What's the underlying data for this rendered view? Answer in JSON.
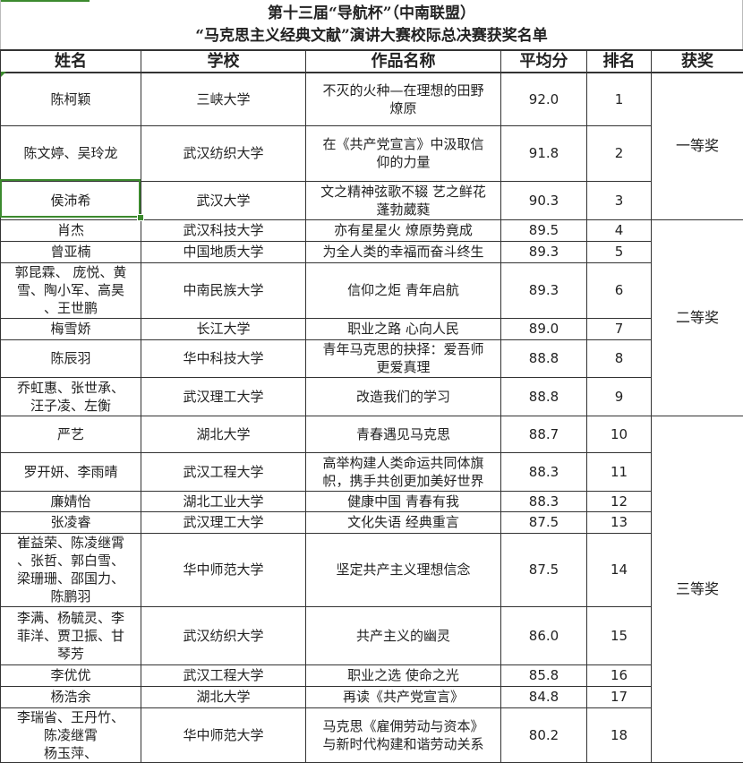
{
  "title": {
    "line1": "第十三届“导航杯”（中南联盟）",
    "line2": "“马克思主义经典文献”演讲大赛校际总决赛获奖名单"
  },
  "headers": [
    "姓名",
    "学校",
    "作品名称",
    "平均分",
    "排名",
    "获奖"
  ],
  "awards": [
    {
      "label": "一等奖",
      "rows": 3
    },
    {
      "label": "二等奖",
      "rows": 6
    },
    {
      "label": "三等奖",
      "rows": 9
    }
  ],
  "rows": [
    {
      "name": "陈柯颖",
      "school": "三峡大学",
      "work": "不灭的火种—在理想的田野\n燎原",
      "score": "92.0",
      "rank": "1"
    },
    {
      "name": "陈文婷、吴玲龙",
      "school": "武汉纺织大学",
      "work": "在《共产党宣言》中汲取信\n仰的力量",
      "score": "91.8",
      "rank": "2"
    },
    {
      "name": "侯沛希",
      "school": "武汉大学",
      "work": "文之精神弦歌不辍 艺之鲜花\n蓬勃葳蕤",
      "score": "90.3",
      "rank": "3"
    },
    {
      "name": "肖杰",
      "school": "武汉科技大学",
      "work": "亦有星星火 燎原势竟成",
      "score": "89.5",
      "rank": "4"
    },
    {
      "name": "曾亚楠",
      "school": "中国地质大学",
      "work": "为全人类的幸福而奋斗终生",
      "score": "89.3",
      "rank": "5"
    },
    {
      "name": "郭昆霖、 庞悦、黄\n雪、陶小军、高昊\n、王世鹏",
      "school": "中南民族大学",
      "work": "信仰之炬 青年启航",
      "score": "89.3",
      "rank": "6"
    },
    {
      "name": "梅雪娇",
      "school": "长江大学",
      "work": "职业之路 心向人民",
      "score": "89.0",
      "rank": "7"
    },
    {
      "name": "陈辰羽",
      "school": "华中科技大学",
      "work": "青年马克思的抉择：爱吾师\n更爱真理",
      "score": "88.8",
      "rank": "8"
    },
    {
      "name": "乔虹惠、张世承、\n汪子凌、左衡",
      "school": "武汉理工大学",
      "work": "改造我们的学习",
      "score": "88.8",
      "rank": "9"
    },
    {
      "name": "严艺",
      "school": "湖北大学",
      "work": "青春遇见马克思",
      "score": "88.7",
      "rank": "10"
    },
    {
      "name": "罗开妍、李雨晴",
      "school": "武汉工程大学",
      "work": "高举构建人类命运共同体旗\n帜，携手共创更加美好世界",
      "score": "88.3",
      "rank": "11"
    },
    {
      "name": "廉婧怡",
      "school": "湖北工业大学",
      "work": "健康中国 青春有我",
      "score": "88.3",
      "rank": "12"
    },
    {
      "name": "张凌睿",
      "school": "武汉理工大学",
      "work": "文化失语 经典重言",
      "score": "87.5",
      "rank": "13"
    },
    {
      "name": "崔益荣、陈凌继霄\n、张哲、郭白雪、\n梁珊珊、邵国力、\n陈鹏羽",
      "school": "华中师范大学",
      "work": "坚定共产主义理想信念",
      "score": "87.5",
      "rank": "14"
    },
    {
      "name": "李满、杨毓灵、李\n菲洋、贾卫振、甘\n琴芳",
      "school": "武汉纺织大学",
      "work": "共产主义的幽灵",
      "score": "86.0",
      "rank": "15"
    },
    {
      "name": "李优优",
      "school": "武汉工程大学",
      "work": "职业之选 使命之光",
      "score": "85.8",
      "rank": "16"
    },
    {
      "name": "杨浩余",
      "school": "湖北大学",
      "work": "再读《共产党宣言》",
      "score": "84.8",
      "rank": "17"
    },
    {
      "name": "李瑞省、王丹竹、\n陈凌继霄\n杨玉萍、",
      "school": "华中师范大学",
      "work": "马克思《雇佣劳动与资本》\n与新时代构建和谐劳动关系",
      "score": "80.2",
      "rank": "18"
    }
  ],
  "colors": {
    "selection": "#3c8a2e",
    "grid": "#333333"
  }
}
